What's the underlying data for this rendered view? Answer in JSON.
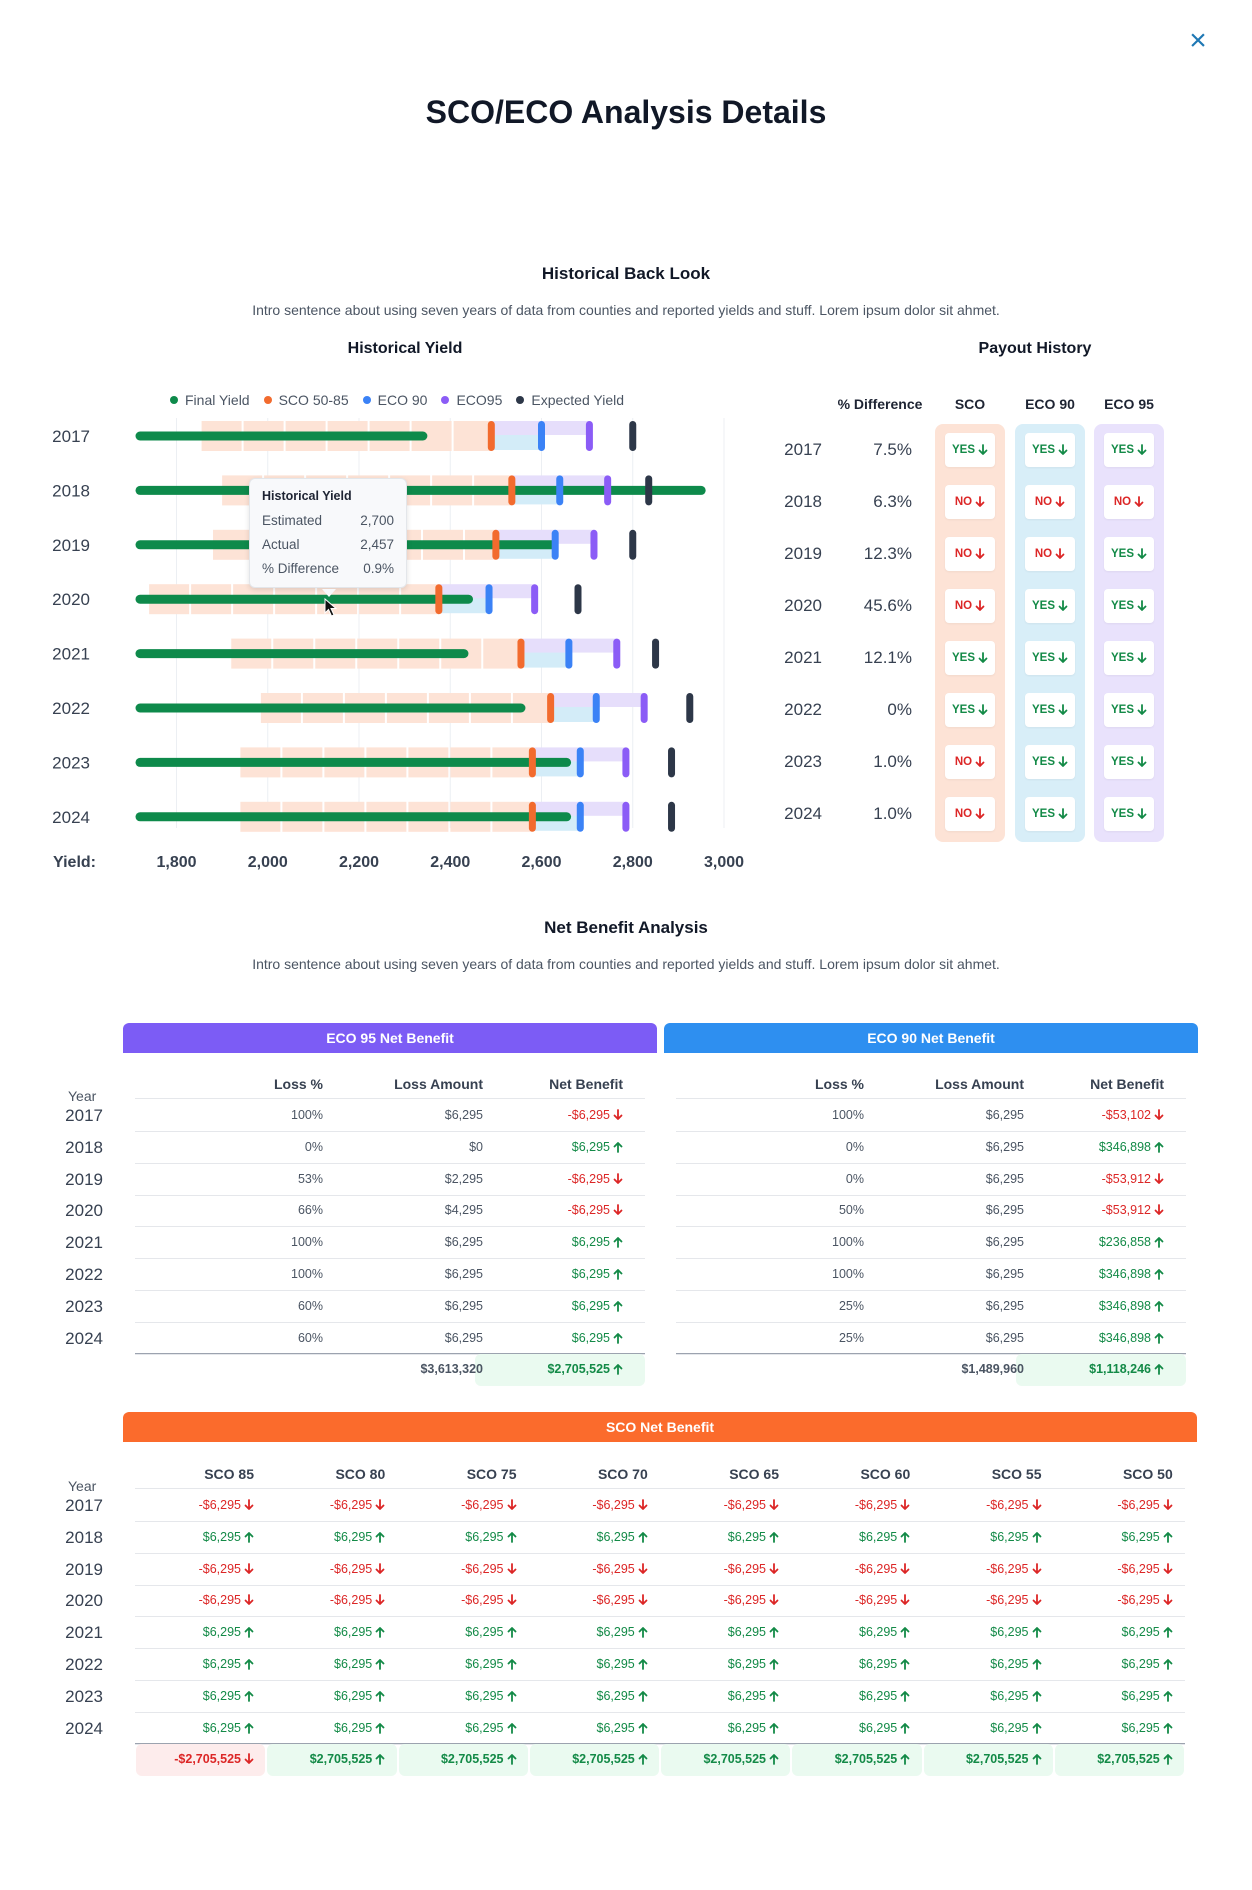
{
  "title": "SCO/ECO Analysis Details",
  "close_icon": "close-icon",
  "back_look": {
    "title": "Historical Back Look",
    "intro": "Intro sentence about using seven years of data from counties and reported yields and stuff. Lorem ipsum dolor sit ahmet."
  },
  "historical_yield": {
    "title": "Historical Yield",
    "legend": [
      {
        "label": "Final Yield",
        "color": "#0e8a4b"
      },
      {
        "label": "SCO 50-85",
        "color": "#f26b2e"
      },
      {
        "label": "ECO 90",
        "color": "#3b82f6"
      },
      {
        "label": "ECO95",
        "color": "#8b5cf6"
      },
      {
        "label": "Expected Yield",
        "color": "#2d3748"
      }
    ],
    "axis_label": "Yield:",
    "tooltip": {
      "title": "Historical Yield",
      "rows": [
        {
          "label": "Estimated",
          "value": "2,700"
        },
        {
          "label": "Actual",
          "value": "2,457"
        },
        {
          "label": "% Difference",
          "value": "0.9%"
        }
      ]
    }
  },
  "chart_data": {
    "type": "bar",
    "title": "Historical Yield",
    "xlabel": "Yield:",
    "xlim": [
      1720,
      3000
    ],
    "x_ticks": [
      "1,800",
      "2,000",
      "2,200",
      "2,400",
      "2,600",
      "2,800",
      "3,000"
    ],
    "categories": [
      "2017",
      "2018",
      "2019",
      "2020",
      "2021",
      "2022",
      "2023",
      "2024"
    ],
    "series": [
      {
        "name": "Final Yield",
        "values": [
          2340,
          2950,
          2625,
          2440,
          2430,
          2555,
          2655,
          2655
        ]
      },
      {
        "name": "SCO 50-85",
        "values": [
          2490,
          2535,
          2500,
          2375,
          2555,
          2620,
          2580,
          2580
        ]
      },
      {
        "name": "ECO 90",
        "values": [
          2600,
          2640,
          2630,
          2485,
          2660,
          2720,
          2685,
          2685
        ]
      },
      {
        "name": "ECO95",
        "values": [
          2705,
          2745,
          2715,
          2585,
          2765,
          2825,
          2785,
          2785
        ]
      },
      {
        "name": "Expected Yield",
        "values": [
          2800,
          2835,
          2800,
          2680,
          2850,
          2925,
          2885,
          2885
        ]
      }
    ],
    "sco_band_start": [
      1855,
      1900,
      1880,
      1740,
      1920,
      1985,
      1940,
      1940
    ]
  },
  "payout": {
    "title": "Payout History",
    "headers": [
      "%  Difference",
      "SCO",
      "ECO 90",
      "ECO 95"
    ],
    "rows": [
      {
        "year": "2017",
        "diff": "7.5%",
        "sco": "YES",
        "eco90": "YES",
        "eco95": "YES"
      },
      {
        "year": "2018",
        "diff": "6.3%",
        "sco": "NO",
        "eco90": "NO",
        "eco95": "NO"
      },
      {
        "year": "2019",
        "diff": "12.3%",
        "sco": "NO",
        "eco90": "NO",
        "eco95": "YES"
      },
      {
        "year": "2020",
        "diff": "45.6%",
        "sco": "NO",
        "eco90": "YES",
        "eco95": "YES"
      },
      {
        "year": "2021",
        "diff": "12.1%",
        "sco": "YES",
        "eco90": "YES",
        "eco95": "YES"
      },
      {
        "year": "2022",
        "diff": "0%",
        "sco": "YES",
        "eco90": "YES",
        "eco95": "YES"
      },
      {
        "year": "2023",
        "diff": "1.0%",
        "sco": "NO",
        "eco90": "YES",
        "eco95": "YES"
      },
      {
        "year": "2024",
        "diff": "1.0%",
        "sco": "NO",
        "eco90": "YES",
        "eco95": "YES"
      }
    ],
    "colors": {
      "sco": "#fde3d6",
      "eco90": "#d8eef8",
      "eco95": "#e9e2fc"
    }
  },
  "net_benefit": {
    "title": "Net Benefit Analysis",
    "intro": "Intro sentence about using seven years of data from counties and reported yields and stuff. Lorem ipsum dolor sit ahmet.",
    "year_header": "Year",
    "years": [
      "2017",
      "2018",
      "2019",
      "2020",
      "2021",
      "2022",
      "2023",
      "2024"
    ],
    "eco95": {
      "title": "ECO 95 Net Benefit",
      "color": "#7c5cf5",
      "headers": [
        "Loss %",
        "Loss Amount",
        "Net Benefit"
      ],
      "rows": [
        {
          "loss_pct": "100%",
          "loss_amt": "$6,295",
          "net": "-$6,295",
          "dir": "down"
        },
        {
          "loss_pct": "0%",
          "loss_amt": "$0",
          "net": "$6,295",
          "dir": "up"
        },
        {
          "loss_pct": "53%",
          "loss_amt": "$2,295",
          "net": "-$6,295",
          "dir": "down"
        },
        {
          "loss_pct": "66%",
          "loss_amt": "$4,295",
          "net": "-$6,295",
          "dir": "down"
        },
        {
          "loss_pct": "100%",
          "loss_amt": "$6,295",
          "net": "$6,295",
          "dir": "up"
        },
        {
          "loss_pct": "100%",
          "loss_amt": "$6,295",
          "net": "$6,295",
          "dir": "up"
        },
        {
          "loss_pct": "60%",
          "loss_amt": "$6,295",
          "net": "$6,295",
          "dir": "up"
        },
        {
          "loss_pct": "60%",
          "loss_amt": "$6,295",
          "net": "$6,295",
          "dir": "up"
        }
      ],
      "total_amt": "$3,613,320",
      "total_net": "$2,705,525",
      "total_dir": "up"
    },
    "eco90": {
      "title": "ECO 90 Net Benefit",
      "color": "#2e8ff0",
      "headers": [
        "Loss %",
        "Loss Amount",
        "Net Benefit"
      ],
      "rows": [
        {
          "loss_pct": "100%",
          "loss_amt": "$6,295",
          "net": "-$53,102",
          "dir": "down"
        },
        {
          "loss_pct": "0%",
          "loss_amt": "$6,295",
          "net": "$346,898",
          "dir": "up"
        },
        {
          "loss_pct": "0%",
          "loss_amt": "$6,295",
          "net": "-$53,912",
          "dir": "down"
        },
        {
          "loss_pct": "50%",
          "loss_amt": "$6,295",
          "net": "-$53,912",
          "dir": "down"
        },
        {
          "loss_pct": "100%",
          "loss_amt": "$6,295",
          "net": "$236,858",
          "dir": "up"
        },
        {
          "loss_pct": "100%",
          "loss_amt": "$6,295",
          "net": "$346,898",
          "dir": "up"
        },
        {
          "loss_pct": "25%",
          "loss_amt": "$6,295",
          "net": "$346,898",
          "dir": "up"
        },
        {
          "loss_pct": "25%",
          "loss_amt": "$6,295",
          "net": "$346,898",
          "dir": "up"
        }
      ],
      "total_amt": "$1,489,960",
      "total_net": "$1,118,246",
      "total_dir": "up"
    },
    "sco": {
      "title": "SCO Net Benefit",
      "color": "#fb6b2c",
      "headers": [
        "SCO 85",
        "SCO 80",
        "SCO 75",
        "SCO 70",
        "SCO 65",
        "SCO 60",
        "SCO 55",
        "SCO 50"
      ],
      "rows": [
        {
          "value": "-$6,295",
          "dir": "down"
        },
        {
          "value": "$6,295",
          "dir": "up"
        },
        {
          "value": "-$6,295",
          "dir": "down"
        },
        {
          "value": "-$6,295",
          "dir": "down"
        },
        {
          "value": "$6,295",
          "dir": "up"
        },
        {
          "value": "$6,295",
          "dir": "up"
        },
        {
          "value": "$6,295",
          "dir": "up"
        },
        {
          "value": "$6,295",
          "dir": "up"
        }
      ],
      "totals": [
        {
          "value": "-$2,705,525",
          "dir": "down"
        },
        {
          "value": "$2,705,525",
          "dir": "up"
        },
        {
          "value": "$2,705,525",
          "dir": "up"
        },
        {
          "value": "$2,705,525",
          "dir": "up"
        },
        {
          "value": "$2,705,525",
          "dir": "up"
        },
        {
          "value": "$2,705,525",
          "dir": "up"
        },
        {
          "value": "$2,705,525",
          "dir": "up"
        },
        {
          "value": "$2,705,525",
          "dir": "up"
        }
      ]
    }
  }
}
